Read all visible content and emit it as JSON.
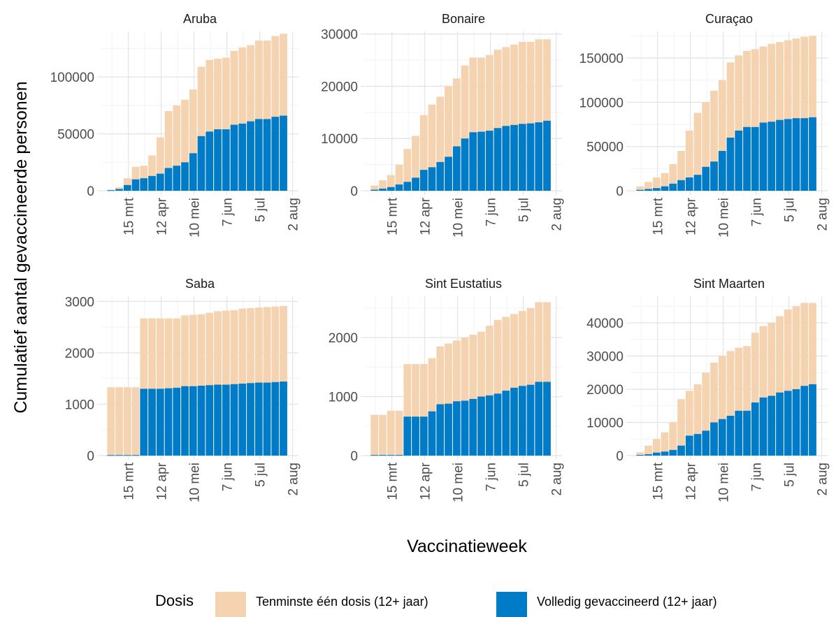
{
  "chart_data": {
    "type": "bar",
    "stacked": false,
    "grid": true,
    "legend_position": "bottom",
    "xlabel": "Vaccinatieweek",
    "ylabel": "Cumulatief aantal gevaccineerde personen",
    "x_ticks": [
      "15 mrt",
      "12 apr",
      "10 mei",
      "7 jun",
      "5 jul",
      "2 aug"
    ],
    "x_tick_days": [
      15,
      43,
      71,
      99,
      127,
      155
    ],
    "x_range_days": [
      -8,
      160
    ],
    "weeks_start_days": [
      -3,
      4,
      11,
      18,
      25,
      32,
      39,
      46,
      53,
      60,
      67,
      74,
      81,
      88,
      95,
      102,
      109,
      116,
      123,
      130,
      137,
      144
    ],
    "legend": {
      "title": "Dosis",
      "items": [
        {
          "label": "Tenminste één dosis (12+ jaar)",
          "color": "#F5D3B0"
        },
        {
          "label": "Volledig gevaccineerd (12+ jaar)",
          "color": "#007BC7"
        }
      ]
    },
    "series_colors": {
      "first": "#F5D3B0",
      "full": "#007BC7"
    },
    "panels": [
      {
        "title": "Aruba",
        "y_ticks": [
          0,
          50000,
          100000
        ],
        "ylim": [
          0,
          140000
        ],
        "first": [
          1000,
          3000,
          11000,
          21000,
          22000,
          31000,
          47000,
          70000,
          75000,
          80000,
          89000,
          109000,
          115000,
          116000,
          117000,
          123000,
          126000,
          128000,
          132000,
          132000,
          136000,
          138000
        ],
        "full": [
          500,
          1500,
          5000,
          10000,
          11000,
          13000,
          15000,
          20000,
          22000,
          25000,
          33000,
          48000,
          52000,
          54000,
          54000,
          58000,
          59000,
          61000,
          63000,
          63000,
          65000,
          66000
        ]
      },
      {
        "title": "Bonaire",
        "y_ticks": [
          0,
          10000,
          20000,
          30000
        ],
        "ylim": [
          0,
          30500
        ],
        "first": [
          1000,
          2000,
          3000,
          5000,
          8000,
          10500,
          14500,
          16500,
          18000,
          20000,
          21500,
          24000,
          25500,
          25500,
          26000,
          27000,
          27500,
          28000,
          28500,
          28500,
          29000,
          29000
        ],
        "full": [
          200,
          400,
          700,
          1200,
          1700,
          2500,
          4000,
          4500,
          5500,
          6500,
          8500,
          10000,
          11200,
          11300,
          11500,
          12000,
          12400,
          12600,
          12800,
          12900,
          13100,
          13400
        ]
      },
      {
        "title": "Curaçao",
        "y_ticks": [
          0,
          50000,
          100000,
          150000
        ],
        "ylim": [
          0,
          180000
        ],
        "first": [
          5000,
          10000,
          15000,
          20000,
          30000,
          45000,
          68000,
          88000,
          100000,
          113000,
          125000,
          145000,
          153000,
          158000,
          160000,
          163000,
          166000,
          168000,
          170000,
          172000,
          174000,
          175000
        ],
        "full": [
          1000,
          2000,
          3000,
          5000,
          8000,
          12000,
          15000,
          18000,
          27000,
          33000,
          45000,
          60000,
          68000,
          72000,
          72000,
          77000,
          78000,
          80000,
          81000,
          82000,
          82000,
          83000
        ]
      },
      {
        "title": "Saba",
        "y_ticks": [
          0,
          1000,
          2000,
          3000
        ],
        "ylim": [
          0,
          3100
        ],
        "first": [
          1330,
          1330,
          1330,
          1330,
          2670,
          2670,
          2670,
          2670,
          2670,
          2730,
          2740,
          2750,
          2780,
          2810,
          2820,
          2830,
          2860,
          2870,
          2880,
          2890,
          2900,
          2910
        ],
        "full": [
          10,
          10,
          10,
          10,
          1300,
          1300,
          1300,
          1310,
          1320,
          1350,
          1350,
          1360,
          1370,
          1380,
          1380,
          1390,
          1400,
          1410,
          1420,
          1420,
          1430,
          1440
        ]
      },
      {
        "title": "Sint Eustatius",
        "y_ticks": [
          0,
          1000,
          2000
        ],
        "ylim": [
          0,
          2700
        ],
        "first": [
          690,
          690,
          760,
          760,
          1550,
          1550,
          1550,
          1650,
          1850,
          1900,
          1950,
          2000,
          2050,
          2100,
          2200,
          2300,
          2350,
          2400,
          2450,
          2500,
          2600,
          2600
        ],
        "full": [
          10,
          10,
          10,
          10,
          660,
          660,
          660,
          750,
          870,
          880,
          920,
          930,
          960,
          1000,
          1020,
          1050,
          1100,
          1150,
          1180,
          1200,
          1250,
          1250
        ]
      },
      {
        "title": "Sint Maarten",
        "y_ticks": [
          0,
          10000,
          20000,
          30000,
          40000
        ],
        "ylim": [
          0,
          48000
        ],
        "first": [
          1000,
          3000,
          5000,
          7000,
          10000,
          17000,
          19500,
          21500,
          25000,
          28000,
          30000,
          31500,
          32500,
          33000,
          37000,
          39000,
          40000,
          42000,
          44000,
          45000,
          46000,
          46000
        ],
        "full": [
          200,
          400,
          900,
          1200,
          1700,
          3000,
          6000,
          6500,
          7500,
          10000,
          11000,
          12000,
          13500,
          13500,
          16000,
          17500,
          18000,
          19000,
          19500,
          20000,
          21000,
          21500
        ]
      }
    ]
  }
}
